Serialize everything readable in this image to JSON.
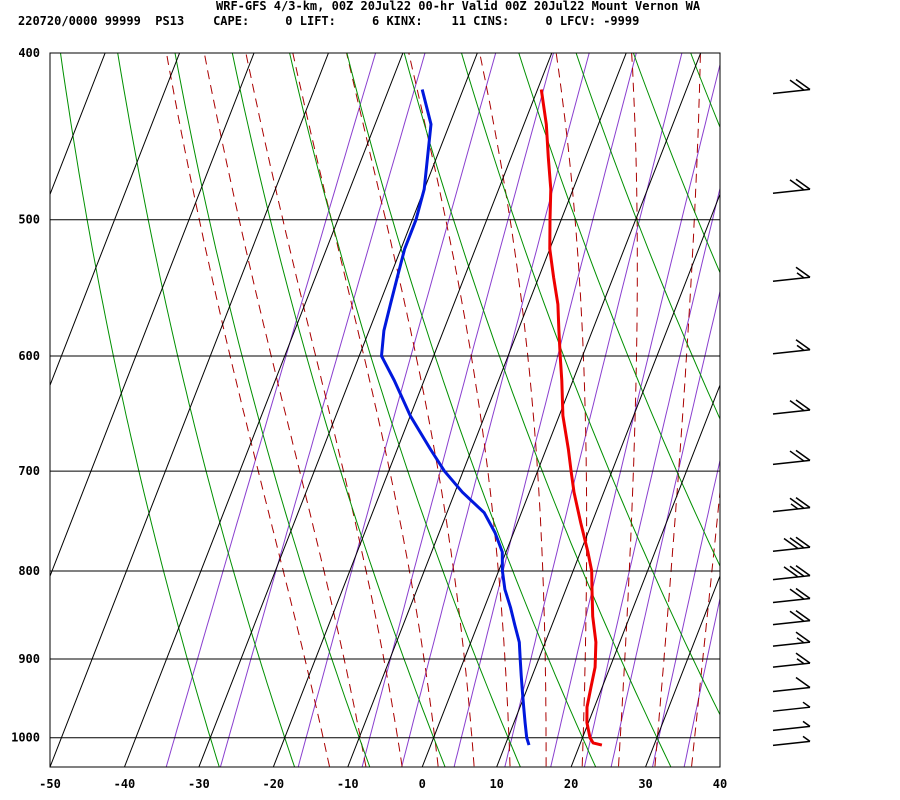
{
  "header": {
    "title": "WRF-GFS 4/3-km, 00Z 20Jul22 00-hr Valid 00Z 20Jul22 Mount Vernon WA",
    "stats": "220720/0000 99999  PS13    CAPE:     0 LIFT:     6 KINX:    11 CINS:     0 LFCV: -9999"
  },
  "colors": {
    "temperature": "#ee0000",
    "dewpoint": "#0018dd",
    "isotherm": "#000000",
    "isobar": "#000000",
    "dry_adiabat": "#009000",
    "moist_adiabat": "#aa0000",
    "mixing_ratio": "#8a3fcf",
    "barbs": "#000000"
  },
  "chart_data": {
    "type": "line",
    "xlim": [
      -50,
      40
    ],
    "ylim": [
      1040,
      400
    ],
    "x_ticks": [
      "-50",
      "-40",
      "-30",
      "-20",
      "-10",
      "0",
      "10",
      "20",
      "30",
      "40"
    ],
    "y_ticks": [
      "400",
      "500",
      "600",
      "700",
      "800",
      "900",
      "1000"
    ],
    "series": [
      {
        "key": "temperature",
        "pressure": [
          1010,
          1007,
          1000,
          980,
          960,
          935,
          910,
          880,
          850,
          820,
          800,
          780,
          750,
          720,
          700,
          680,
          650,
          620,
          600,
          580,
          560,
          540,
          520,
          500,
          480,
          460,
          440,
          420
        ],
        "values": [
          23,
          21.7,
          21,
          19.8,
          19,
          18.5,
          18,
          16.8,
          15,
          13.5,
          12.5,
          11,
          8.5,
          6,
          4.5,
          3,
          0.5,
          -1.5,
          -3,
          -4.5,
          -6,
          -8,
          -10,
          -11.5,
          -13,
          -15,
          -17,
          -19.5
        ]
      },
      {
        "key": "dewpoint",
        "pressure": [
          1010,
          1000,
          980,
          960,
          940,
          920,
          900,
          880,
          860,
          840,
          820,
          800,
          780,
          760,
          740,
          720,
          700,
          680,
          650,
          620,
          600,
          580,
          560,
          540,
          520,
          500,
          480,
          440,
          420
        ],
        "values": [
          13.2,
          12.5,
          11.5,
          10.5,
          9.5,
          8.5,
          7.5,
          6.5,
          5,
          3.5,
          1.8,
          0.5,
          -0.5,
          -2.5,
          -5,
          -9,
          -12.5,
          -15.5,
          -20,
          -24,
          -27,
          -28,
          -28.5,
          -29,
          -29.5,
          -29.5,
          -30,
          -32.5,
          -35.5
        ]
      }
    ],
    "wind_barbs": [
      {
        "p": 420,
        "speed": 20
      },
      {
        "p": 480,
        "speed": 20
      },
      {
        "p": 540,
        "speed": 15
      },
      {
        "p": 595,
        "speed": 15
      },
      {
        "p": 645,
        "speed": 20
      },
      {
        "p": 690,
        "speed": 20
      },
      {
        "p": 735,
        "speed": 25
      },
      {
        "p": 775,
        "speed": 30
      },
      {
        "p": 805,
        "speed": 30
      },
      {
        "p": 830,
        "speed": 20
      },
      {
        "p": 855,
        "speed": 20
      },
      {
        "p": 880,
        "speed": 15
      },
      {
        "p": 905,
        "speed": 15
      },
      {
        "p": 935,
        "speed": 10
      },
      {
        "p": 960,
        "speed": 5
      },
      {
        "p": 985,
        "speed": 5
      },
      {
        "p": 1005,
        "speed": 5
      }
    ]
  }
}
